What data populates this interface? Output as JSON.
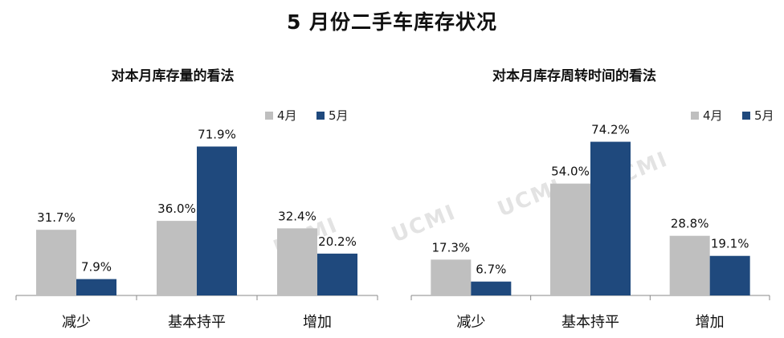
{
  "page_title": "5 月份二手车库存状况",
  "watermark": "UCMI",
  "colors": {
    "april": "#bfbfbf",
    "may": "#1f497d",
    "axis": "#888888"
  },
  "chart_data": [
    {
      "type": "bar",
      "title": "对本月库存量的看法",
      "categories": [
        "减少",
        "基本持平",
        "增加"
      ],
      "series": [
        {
          "name": "4月",
          "values": [
            31.7,
            36.0,
            32.4
          ],
          "labels": [
            "31.7%",
            "36.0%",
            "32.4%"
          ]
        },
        {
          "name": "5月",
          "values": [
            7.9,
            71.9,
            20.2
          ],
          "labels": [
            "7.9%",
            "71.9%",
            "20.2%"
          ]
        }
      ],
      "ylim": [
        0,
        100
      ],
      "grid": false,
      "legend": "top-right"
    },
    {
      "type": "bar",
      "title": "对本月库存周转时间的看法",
      "categories": [
        "减少",
        "基本持平",
        "增加"
      ],
      "series": [
        {
          "name": "4月",
          "values": [
            17.3,
            54.0,
            28.8
          ],
          "labels": [
            "17.3%",
            "54.0%",
            "28.8%"
          ]
        },
        {
          "name": "5月",
          "values": [
            6.7,
            74.2,
            19.1
          ],
          "labels": [
            "6.7%",
            "74.2%",
            "19.1%"
          ]
        }
      ],
      "ylim": [
        0,
        100
      ],
      "grid": false,
      "legend": "top-right"
    }
  ]
}
